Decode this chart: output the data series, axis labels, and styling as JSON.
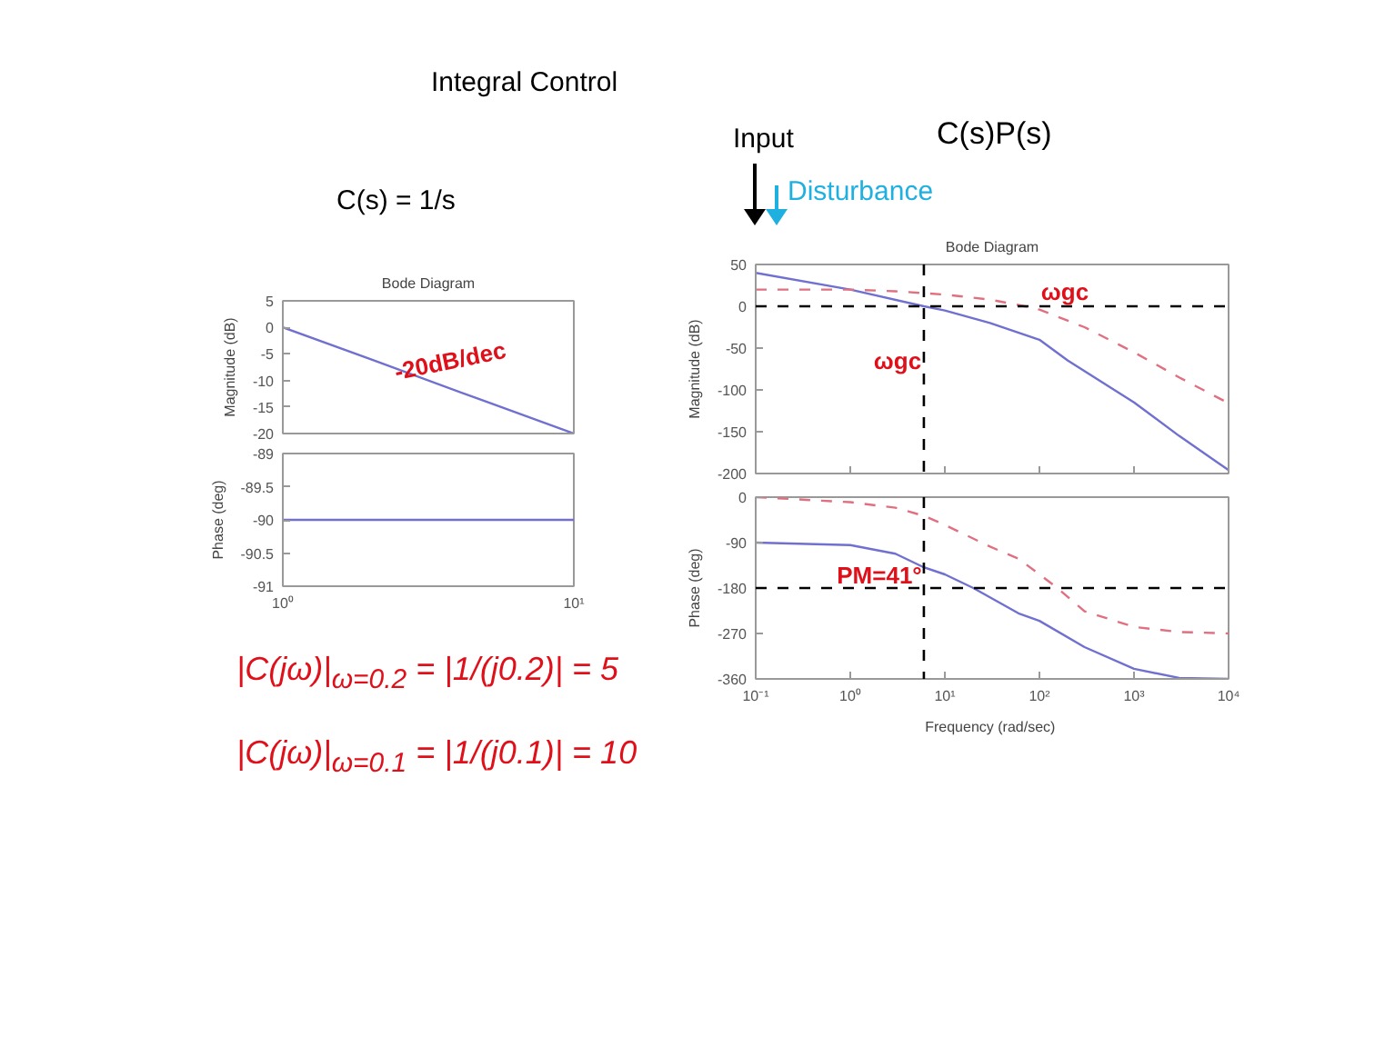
{
  "chart_data": [
    {
      "type": "line",
      "title": "Bode Diagram",
      "ylabel": "Magnitude (dB)",
      "log": "x",
      "xlim": [
        1,
        10
      ],
      "xticks": [
        {
          "value": 1,
          "label": null
        },
        {
          "value": 10,
          "label": null
        }
      ],
      "ylim": [
        -20,
        5
      ],
      "yticks": [
        5,
        0,
        -5,
        -10,
        -15,
        -20
      ],
      "tick_labels": "y",
      "grid": false,
      "x": [
        1,
        2,
        5,
        10
      ],
      "series": [
        {
          "color": "#7070d0",
          "line_style": "solid",
          "values": [
            0,
            -6,
            -14,
            -20
          ]
        }
      ],
      "annotations": [
        "Integral Control",
        "C(s) = 1/s",
        "-20dB/dec"
      ]
    },
    {
      "type": "line",
      "ylabel": "Phase (deg)",
      "log": "x",
      "xlim": [
        1,
        10
      ],
      "xticks": [
        {
          "value": 1,
          "label": "10⁰"
        },
        {
          "value": 10,
          "label": "10¹"
        }
      ],
      "ylim": [
        -91,
        -89
      ],
      "yticks": [
        -89,
        -89.5,
        -90,
        -90.5,
        -91
      ],
      "grid": false,
      "x": [
        1,
        2,
        5,
        10
      ],
      "series": [
        {
          "color": "#7070d0",
          "line_style": "solid",
          "values": [
            -90,
            -90,
            -90,
            -90
          ]
        }
      ],
      "annotations": [
        "|C(jω)|$_{ω=0.2}$ = |1/(j0.2)| = 5",
        "|C(jω)|$_{ω=0.1}$ = |1/(j0.1)| = 10"
      ]
    },
    {
      "type": "line",
      "title": "Bode Diagram",
      "ylabel": "Magnitude (dB)",
      "log": "x",
      "xlim": [
        0.1,
        10000
      ],
      "xticks": [
        {
          "value": 0.1,
          "label": null
        },
        {
          "value": 1,
          "label": null
        },
        {
          "value": 10,
          "label": null
        },
        {
          "value": 100,
          "label": null
        },
        {
          "value": 1000,
          "label": null
        },
        {
          "value": 10000,
          "label": null
        }
      ],
      "ylim": [
        -200,
        50
      ],
      "yticks": [
        50,
        0,
        -50,
        -100,
        -150,
        -200
      ],
      "tick_labels": "y",
      "grid": false,
      "series": [
        {
          "color": "#7070d0",
          "line_style": "solid",
          "x": [
            0.1,
            1,
            6,
            10,
            30,
            100,
            200,
            1000,
            3000,
            10000
          ],
          "values": [
            40,
            20,
            0,
            -5,
            -20,
            -40,
            -65,
            -115,
            -155,
            -196
          ]
        },
        {
          "color": "#e07080",
          "line_style": "dashed",
          "x": [
            0.1,
            1,
            3,
            10,
            30,
            70,
            100,
            300,
            1000,
            3000,
            10000
          ],
          "values": [
            20,
            20,
            18,
            14,
            8,
            0,
            -4,
            -25,
            -55,
            -85,
            -116
          ]
        }
      ],
      "ref_lines": [
        {
          "axis": "y",
          "value": 0,
          "color": "#000000",
          "line_style": "dashed"
        },
        {
          "axis": "x",
          "value": 6,
          "color": "#000000",
          "line_style": "dashed"
        }
      ],
      "annotations": [
        "C(s)P(s)",
        "Input",
        "Disturbance",
        "ωgc",
        "ωgc"
      ]
    },
    {
      "type": "line",
      "xlabel": "Frequency  (rad/sec)",
      "ylabel": "Phase (deg)",
      "log": "x",
      "xlim": [
        0.1,
        10000
      ],
      "xticks": [
        {
          "value": 0.1,
          "label": "10⁻¹"
        },
        {
          "value": 1,
          "label": "10⁰"
        },
        {
          "value": 10,
          "label": "10¹"
        },
        {
          "value": 100,
          "label": "10²"
        },
        {
          "value": 1000,
          "label": "10³"
        },
        {
          "value": 10000,
          "label": "10⁴"
        }
      ],
      "ylim": [
        -360,
        0
      ],
      "yticks": [
        0,
        -90,
        -180,
        -270,
        -360
      ],
      "grid": false,
      "series": [
        {
          "color": "#7070d0",
          "line_style": "solid",
          "x": [
            0.1,
            1,
            3,
            6,
            10,
            20,
            60,
            100,
            300,
            1000,
            3000,
            10000
          ],
          "values": [
            -90,
            -95,
            -112,
            -139,
            -153,
            -180,
            -230,
            -245,
            -297,
            -340,
            -358,
            -360
          ]
        },
        {
          "color": "#e07080",
          "line_style": "dashed",
          "x": [
            0.1,
            1,
            3,
            6,
            10,
            30,
            60,
            100,
            155,
            300,
            1000,
            3000,
            10000
          ],
          "values": [
            0,
            -10,
            -21,
            -37,
            -55,
            -98,
            -122,
            -153,
            -180,
            -226,
            -257,
            -267,
            -270
          ]
        }
      ],
      "ref_lines": [
        {
          "axis": "y",
          "value": -180,
          "color": "#000000",
          "line_style": "dashed"
        },
        {
          "axis": "x",
          "value": 6,
          "color": "#000000",
          "line_style": "dashed"
        }
      ],
      "annotations": [
        "PM=41°"
      ]
    }
  ]
}
